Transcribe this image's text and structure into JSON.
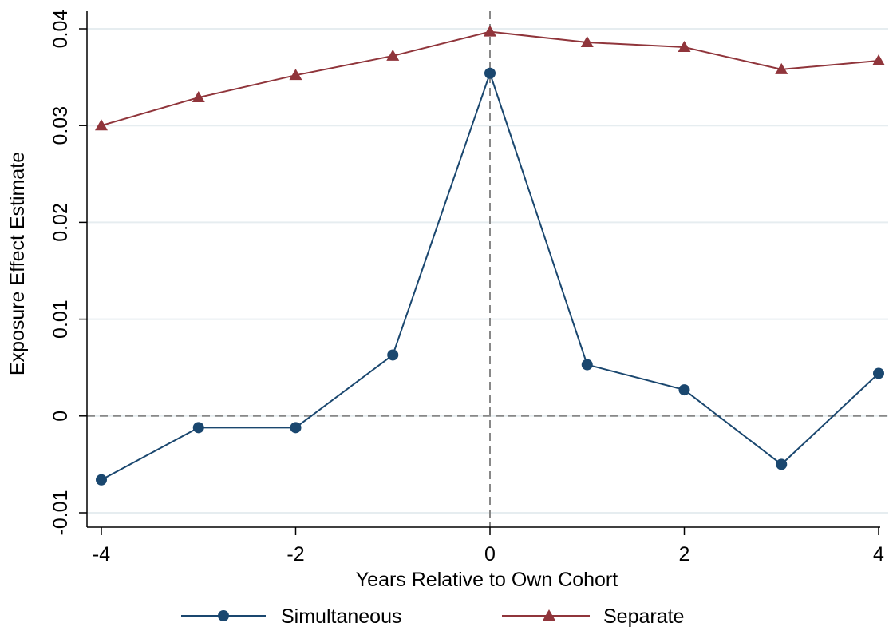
{
  "chart_data": {
    "type": "line",
    "title": "",
    "xlabel": "Years Relative to Own Cohort",
    "ylabel": "Exposure Effect Estimate",
    "xlim": [
      -4,
      4
    ],
    "ylim": [
      -0.01,
      0.04
    ],
    "x_ticks": [
      -4,
      -2,
      0,
      2,
      4
    ],
    "x_tick_labels": [
      "-4",
      "-2",
      "0",
      "2",
      "4"
    ],
    "y_ticks": [
      -0.01,
      0,
      0.01,
      0.02,
      0.03,
      0.04
    ],
    "y_tick_labels": [
      "-0.01",
      "0",
      "0.01",
      "0.02",
      "0.03",
      "0.04"
    ],
    "grid": true,
    "reference_lines": {
      "x": 0,
      "y": 0,
      "style": "dashed"
    },
    "x": [
      -4,
      -3,
      -2,
      -1,
      0,
      1,
      2,
      3,
      4
    ],
    "series": [
      {
        "name": "Simultaneous",
        "marker": "circle",
        "color": "#1a476f",
        "values": [
          -0.0066,
          -0.0012,
          -0.0012,
          0.0063,
          0.0354,
          0.0053,
          0.0027,
          -0.005,
          0.0044
        ]
      },
      {
        "name": "Separate",
        "marker": "triangle",
        "color": "#90353b",
        "values": [
          0.03,
          0.0329,
          0.0352,
          0.0372,
          0.0397,
          0.0386,
          0.0381,
          0.0358,
          0.0367
        ]
      }
    ],
    "legend_position": "bottom"
  }
}
